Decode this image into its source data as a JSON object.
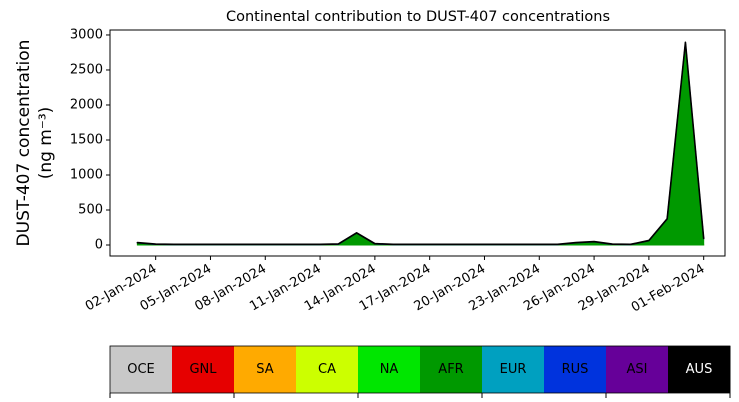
{
  "chart_data": {
    "type": "stacked-area",
    "title": "Continental contribution to DUST-407 concentrations",
    "ylabel": [
      "DUST-407 concentration",
      "(ng m⁻³)"
    ],
    "x": [
      "2024-01-01",
      "2024-01-02",
      "2024-01-03",
      "2024-01-04",
      "2024-01-05",
      "2024-01-06",
      "2024-01-07",
      "2024-01-08",
      "2024-01-09",
      "2024-01-10",
      "2024-01-11",
      "2024-01-12",
      "2024-01-13",
      "2024-01-14",
      "2024-01-15",
      "2024-01-16",
      "2024-01-17",
      "2024-01-18",
      "2024-01-19",
      "2024-01-20",
      "2024-01-21",
      "2024-01-22",
      "2024-01-23",
      "2024-01-24",
      "2024-01-25",
      "2024-01-26",
      "2024-01-27",
      "2024-01-28",
      "2024-01-29",
      "2024-01-30",
      "2024-01-31",
      "2024-02-01"
    ],
    "xlim": [
      "2023-12-30T12:00",
      "2024-02-02T04:00"
    ],
    "xticks": [
      {
        "value": "2024-01-02",
        "label": "02-Jan-2024"
      },
      {
        "value": "2024-01-05",
        "label": "05-Jan-2024"
      },
      {
        "value": "2024-01-08",
        "label": "08-Jan-2024"
      },
      {
        "value": "2024-01-11",
        "label": "11-Jan-2024"
      },
      {
        "value": "2024-01-14",
        "label": "14-Jan-2024"
      },
      {
        "value": "2024-01-17",
        "label": "17-Jan-2024"
      },
      {
        "value": "2024-01-20",
        "label": "20-Jan-2024"
      },
      {
        "value": "2024-01-23",
        "label": "23-Jan-2024"
      },
      {
        "value": "2024-01-26",
        "label": "26-Jan-2024"
      },
      {
        "value": "2024-01-29",
        "label": "29-Jan-2024"
      },
      {
        "value": "2024-02-01",
        "label": "01-Feb-2024"
      }
    ],
    "ylim": [
      -157,
      3071
    ],
    "yticks": [
      0,
      500,
      1000,
      1500,
      2000,
      2500,
      3000
    ],
    "series": [
      {
        "name": "OCE",
        "color": "#c8c8c8",
        "values": [
          0,
          0,
          0,
          0,
          0,
          0,
          0,
          0,
          0,
          0,
          0,
          0,
          0,
          0,
          0,
          0,
          0,
          0,
          0,
          0,
          0,
          0,
          0,
          0,
          0,
          0,
          0,
          0,
          0,
          0,
          0,
          0
        ]
      },
      {
        "name": "GNL",
        "color": "#e60000",
        "values": [
          0,
          0,
          0,
          0,
          0,
          0,
          0,
          0,
          0,
          0,
          0,
          0,
          0,
          0,
          0,
          0,
          0,
          0,
          0,
          0,
          0,
          0,
          0,
          0,
          0,
          0,
          0,
          0,
          0,
          0,
          0,
          0
        ]
      },
      {
        "name": "SA",
        "color": "#ffaa00",
        "values": [
          0,
          0,
          0,
          0,
          0,
          0,
          0,
          0,
          0,
          0,
          0,
          0,
          0,
          0,
          0,
          0,
          0,
          0,
          0,
          0,
          0,
          0,
          0,
          0,
          0,
          0,
          0,
          0,
          0,
          0,
          0,
          0
        ]
      },
      {
        "name": "CA",
        "color": "#ccff00",
        "values": [
          0,
          0,
          0,
          0,
          0,
          0,
          0,
          0,
          0,
          0,
          0,
          0,
          0,
          0,
          0,
          0,
          0,
          0,
          0,
          0,
          0,
          0,
          0,
          0,
          0,
          0,
          0,
          0,
          0,
          0,
          0,
          0
        ]
      },
      {
        "name": "NA",
        "color": "#00e600",
        "values": [
          0,
          0,
          0,
          0,
          0,
          0,
          0,
          0,
          0,
          0,
          0,
          0,
          0,
          0,
          0,
          0,
          0,
          0,
          0,
          0,
          0,
          0,
          0,
          0,
          0,
          0,
          0,
          0,
          0,
          0,
          0,
          0
        ]
      },
      {
        "name": "AFR",
        "color": "#009900",
        "values": [
          30,
          8,
          5,
          5,
          5,
          5,
          5,
          5,
          5,
          5,
          5,
          10,
          170,
          15,
          5,
          5,
          5,
          5,
          5,
          5,
          5,
          5,
          5,
          5,
          30,
          45,
          8,
          5,
          60,
          370,
          2890,
          90
        ]
      },
      {
        "name": "EUR",
        "color": "#00a0c0",
        "values": [
          0,
          0,
          0,
          0,
          0,
          0,
          0,
          0,
          0,
          0,
          0,
          0,
          0,
          0,
          0,
          0,
          0,
          0,
          0,
          0,
          0,
          0,
          0,
          0,
          0,
          0,
          0,
          0,
          0,
          0,
          0,
          0
        ]
      },
      {
        "name": "RUS",
        "color": "#0033dd",
        "values": [
          3,
          3,
          3,
          3,
          3,
          3,
          3,
          3,
          3,
          3,
          3,
          3,
          3,
          3,
          3,
          3,
          3,
          3,
          3,
          3,
          3,
          3,
          3,
          3,
          3,
          3,
          3,
          3,
          3,
          3,
          3,
          3
        ]
      },
      {
        "name": "ASI",
        "color": "#660099",
        "values": [
          0,
          0,
          0,
          0,
          0,
          0,
          0,
          0,
          0,
          0,
          0,
          0,
          0,
          0,
          0,
          0,
          0,
          0,
          0,
          0,
          0,
          0,
          0,
          0,
          0,
          0,
          0,
          0,
          0,
          0,
          0,
          0
        ]
      },
      {
        "name": "AUS",
        "color": "#000000",
        "values": [
          2,
          2,
          2,
          2,
          2,
          2,
          2,
          2,
          2,
          2,
          2,
          2,
          2,
          2,
          2,
          2,
          2,
          2,
          2,
          2,
          2,
          2,
          2,
          2,
          2,
          2,
          2,
          2,
          2,
          2,
          2,
          2
        ]
      }
    ]
  }
}
